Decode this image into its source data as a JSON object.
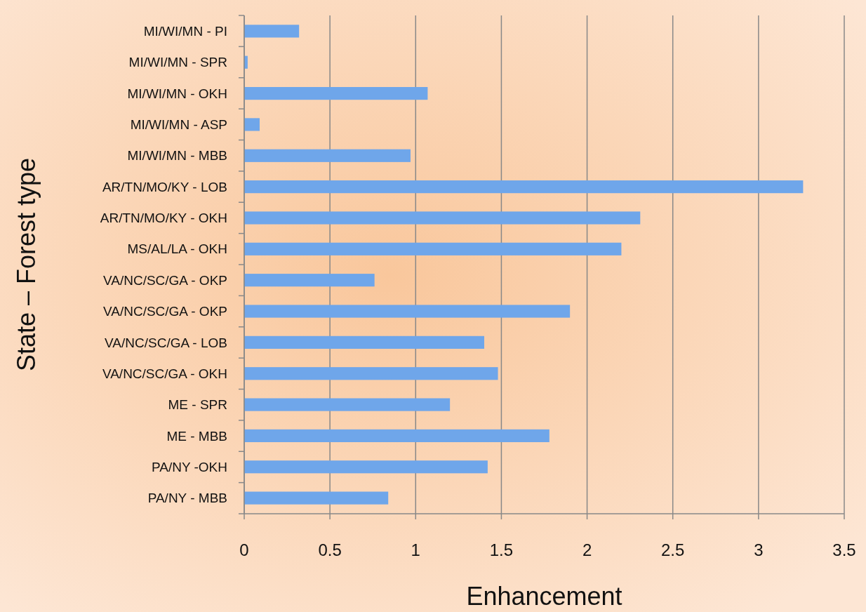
{
  "chart_data": {
    "type": "bar",
    "orientation": "horizontal",
    "xlabel": "Enhancement",
    "ylabel": "State – Forest type",
    "categories": [
      "MI/WI/MN - PI",
      "MI/WI/MN - SPR",
      "MI/WI/MN - OKH",
      "MI/WI/MN - ASP",
      "MI/WI/MN - MBB",
      "AR/TN/MO/KY - LOB",
      "AR/TN/MO/KY - OKH",
      "MS/AL/LA - OKH",
      "VA/NC/SC/GA - OKP",
      "VA/NC/SC/GA - OKP",
      "VA/NC/SC/GA - LOB",
      "VA/NC/SC/GA - OKH",
      "ME - SPR",
      "ME - MBB",
      "PA/NY -OKH",
      "PA/NY - MBB"
    ],
    "values": [
      0.32,
      0.02,
      1.07,
      0.09,
      0.97,
      3.26,
      2.31,
      2.2,
      0.76,
      1.9,
      1.4,
      1.48,
      1.2,
      1.78,
      1.42,
      0.84
    ],
    "color": "#6fa6ea",
    "xlim": [
      0,
      3.5
    ],
    "xticks": [
      0,
      0.5,
      1,
      1.5,
      2,
      2.5,
      3,
      3.5
    ],
    "grid": "x"
  }
}
